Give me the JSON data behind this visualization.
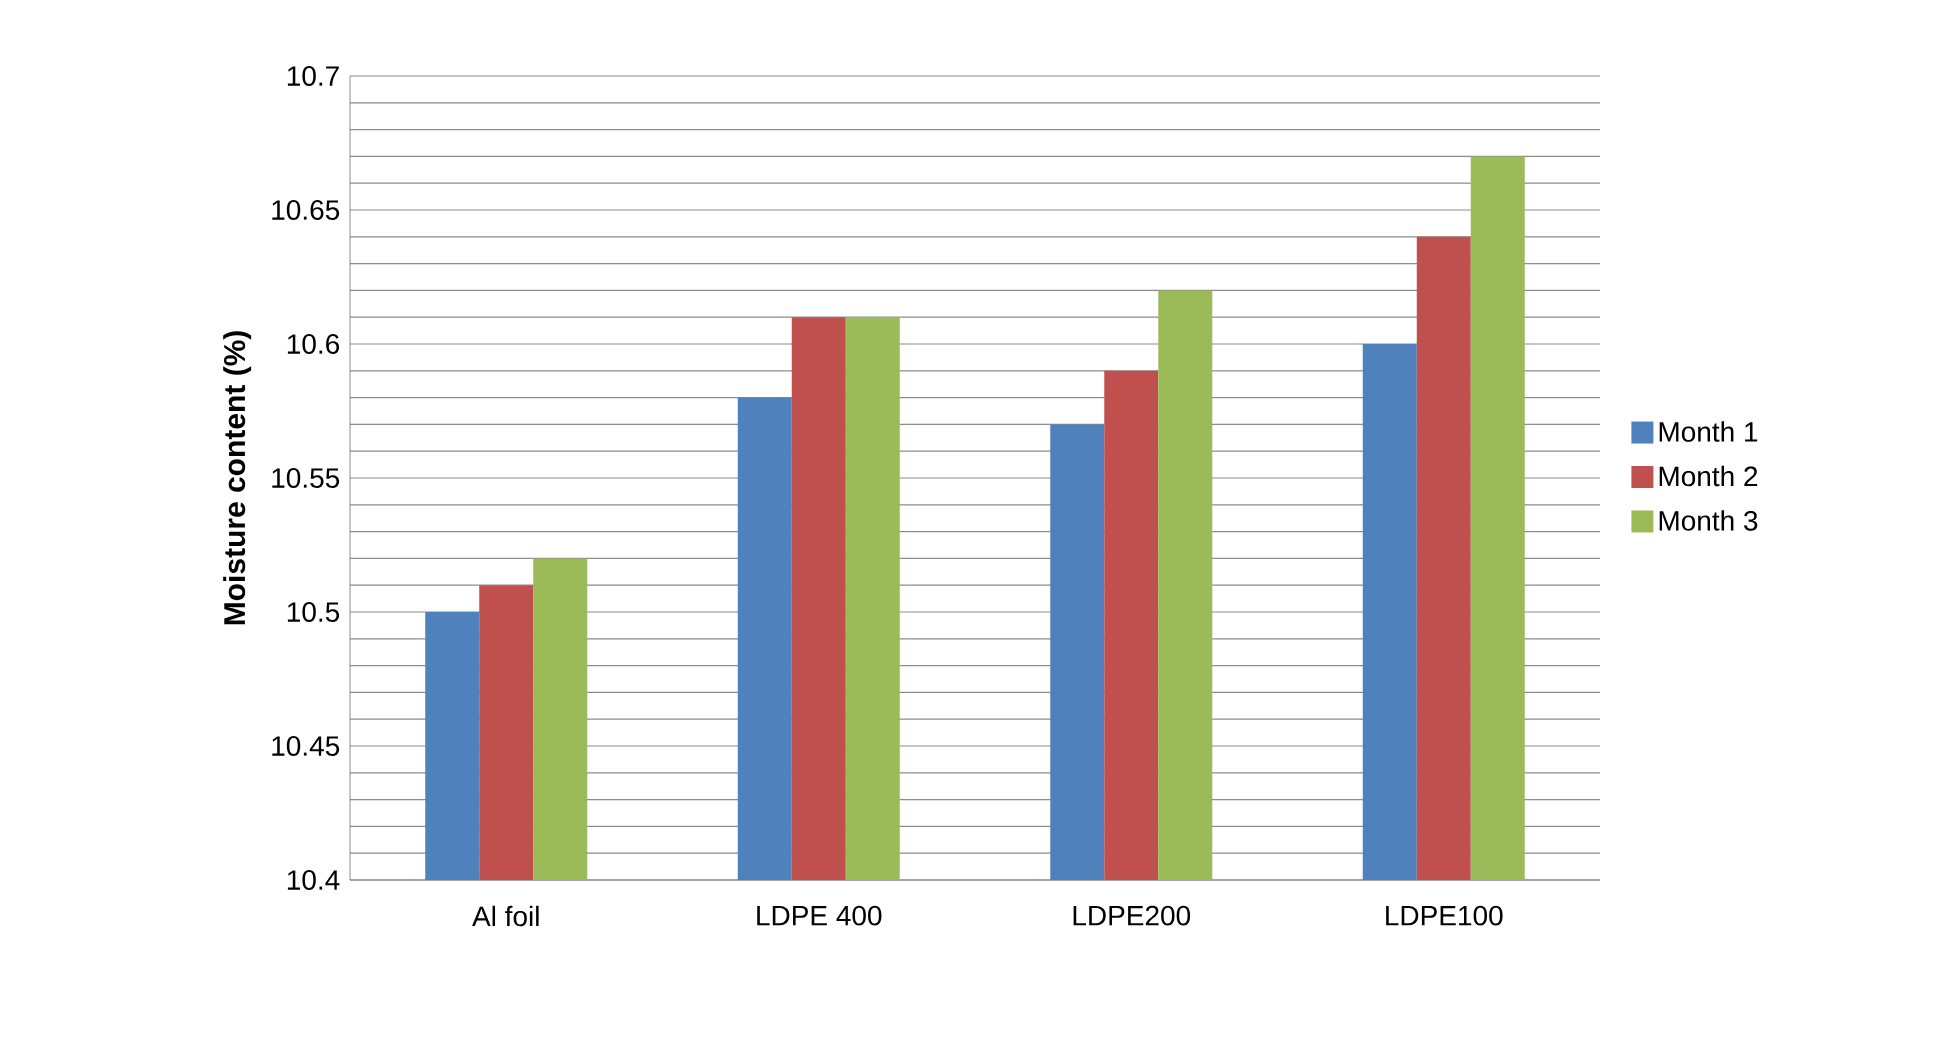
{
  "chart_data": {
    "type": "bar",
    "ylabel": "Moisture content (%)",
    "categories": [
      "Al foil",
      "LDPE 400",
      "LDPE200",
      "LDPE100"
    ],
    "series": [
      {
        "name": "Month 1",
        "color": "#4f81bd",
        "values": [
          10.5,
          10.58,
          10.57,
          10.6
        ]
      },
      {
        "name": "Month 2",
        "color": "#c0504d",
        "values": [
          10.51,
          10.61,
          10.59,
          10.64
        ]
      },
      {
        "name": "Month 3",
        "color": "#9bbb59",
        "values": [
          10.52,
          10.61,
          10.62,
          10.67
        ]
      }
    ],
    "ylim": [
      10.4,
      10.7
    ],
    "yticks": [
      10.4,
      {
        "value": 10.41,
        "label": null
      },
      {
        "value": 10.42,
        "label": null
      },
      {
        "value": 10.43,
        "label": null
      },
      {
        "value": 10.44,
        "label": null
      },
      10.45,
      {
        "value": 10.46,
        "label": null
      },
      {
        "value": 10.47,
        "label": null
      },
      {
        "value": 10.48,
        "label": null
      },
      {
        "value": 10.49,
        "label": null
      },
      10.5,
      {
        "value": 10.51,
        "label": null
      },
      {
        "value": 10.52,
        "label": null
      },
      {
        "value": 10.53,
        "label": null
      },
      {
        "value": 10.54,
        "label": null
      },
      10.55,
      {
        "value": 10.56,
        "label": null
      },
      {
        "value": 10.57,
        "label": null
      },
      {
        "value": 10.58,
        "label": null
      },
      {
        "value": 10.59,
        "label": null
      },
      10.6,
      {
        "value": 10.61,
        "label": null
      },
      {
        "value": 10.62,
        "label": null
      },
      {
        "value": 10.63,
        "label": null
      },
      {
        "value": 10.64,
        "label": null
      },
      10.65,
      {
        "value": 10.66,
        "label": null
      },
      {
        "value": 10.67,
        "label": null
      },
      {
        "value": 10.68,
        "label": null
      },
      {
        "value": 10.69,
        "label": null
      },
      10.7
    ],
    "grid": "y",
    "legend": "right"
  }
}
